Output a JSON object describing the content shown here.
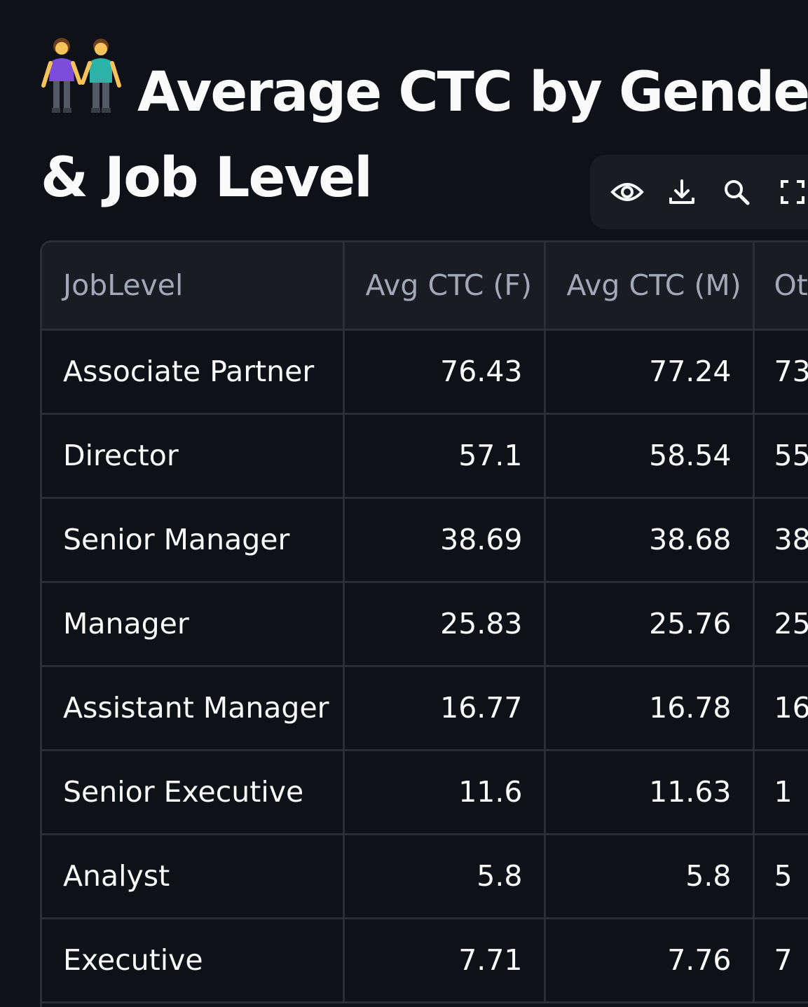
{
  "page": {
    "title_emoji": "👭",
    "title_line1": "Average CTC by Gender",
    "title_line2": "& Job Level"
  },
  "toolbar": {
    "buttons": [
      {
        "icon": "eye-icon",
        "label": "Show/hide columns"
      },
      {
        "icon": "download-icon",
        "label": "Download as CSV"
      },
      {
        "icon": "search-icon",
        "label": "Search"
      },
      {
        "icon": "fullscreen-icon",
        "label": "Fullscreen"
      }
    ]
  },
  "table": {
    "columns": [
      "JobLevel",
      "Avg CTC (F)",
      "Avg CTC (M)",
      "Ot"
    ],
    "rows": [
      {
        "level": "Associate Partner",
        "f": "76.43",
        "m": "77.24",
        "o": "73"
      },
      {
        "level": "Director",
        "f": "57.1",
        "m": "58.54",
        "o": "55"
      },
      {
        "level": "Senior Manager",
        "f": "38.69",
        "m": "38.68",
        "o": "38"
      },
      {
        "level": "Manager",
        "f": "25.83",
        "m": "25.76",
        "o": "25"
      },
      {
        "level": "Assistant Manager",
        "f": "16.77",
        "m": "16.78",
        "o": "16"
      },
      {
        "level": "Senior Executive",
        "f": "11.6",
        "m": "11.63",
        "o": "1"
      },
      {
        "level": "Analyst",
        "f": "5.8",
        "m": "5.8",
        "o": "5"
      },
      {
        "level": "Executive",
        "f": "7.71",
        "m": "7.76",
        "o": "7"
      }
    ]
  },
  "colors": {
    "background": "#0e1117",
    "header_bg": "#1a1c24",
    "border": "#2b2e37",
    "text": "#fafafa",
    "header_text": "#a3a8b8"
  }
}
